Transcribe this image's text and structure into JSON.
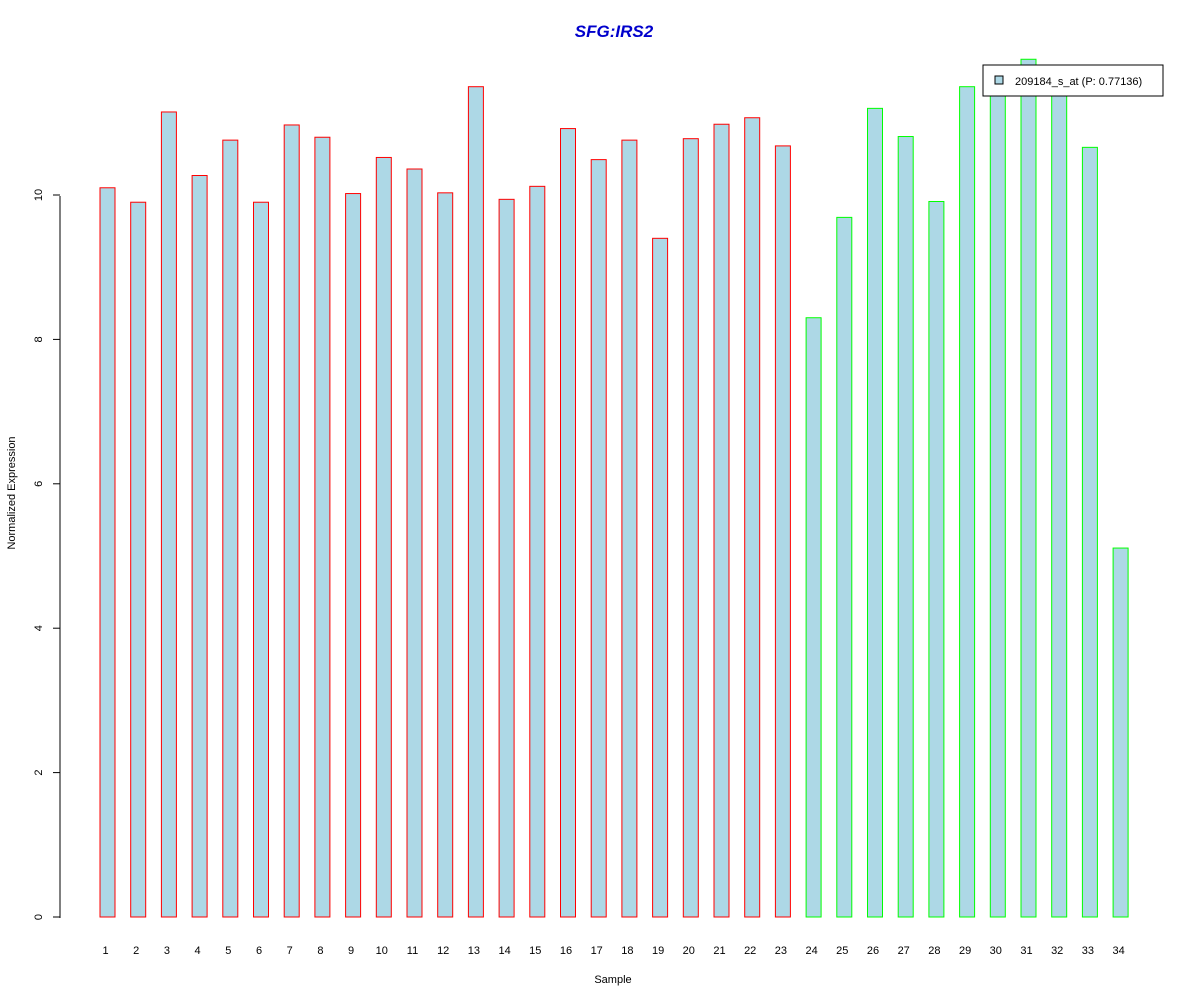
{
  "chart_data": {
    "type": "bar",
    "title": "SFG:IRS2",
    "xlabel": "Sample",
    "ylabel": "Normalized Expression",
    "categories": [
      "1",
      "2",
      "3",
      "4",
      "5",
      "6",
      "7",
      "8",
      "9",
      "10",
      "11",
      "12",
      "13",
      "14",
      "15",
      "16",
      "17",
      "18",
      "19",
      "20",
      "21",
      "22",
      "23",
      "24",
      "25",
      "26",
      "27",
      "28",
      "29",
      "30",
      "31",
      "32",
      "33",
      "34"
    ],
    "series": [
      {
        "name": "209184_s_at (P: 0.77136)",
        "values": [
          10.1,
          9.9,
          11.15,
          10.27,
          10.76,
          9.9,
          10.97,
          10.8,
          10.02,
          10.52,
          10.36,
          10.03,
          11.5,
          9.94,
          10.12,
          10.92,
          10.49,
          10.76,
          9.4,
          10.78,
          10.98,
          11.07,
          10.68,
          8.3,
          9.69,
          11.2,
          10.81,
          9.91,
          11.5,
          11.5,
          11.88,
          11.5,
          10.66,
          5.11
        ],
        "group": [
          "1",
          "1",
          "1",
          "1",
          "1",
          "1",
          "1",
          "1",
          "1",
          "1",
          "1",
          "1",
          "1",
          "1",
          "1",
          "1",
          "1",
          "1",
          "1",
          "1",
          "1",
          "1",
          "1",
          "2",
          "2",
          "2",
          "2",
          "2",
          "2",
          "2",
          "2",
          "2",
          "2",
          "2"
        ]
      }
    ],
    "yticks": [
      0,
      2,
      4,
      6,
      8,
      10
    ],
    "ylim": [
      0,
      12
    ],
    "legend_position": "top-right",
    "grid": false,
    "colors": {
      "bar_fill": "#add8e6",
      "group1_border": "#ff0000",
      "group2_border": "#00ff00",
      "title": "#0000cc"
    }
  }
}
